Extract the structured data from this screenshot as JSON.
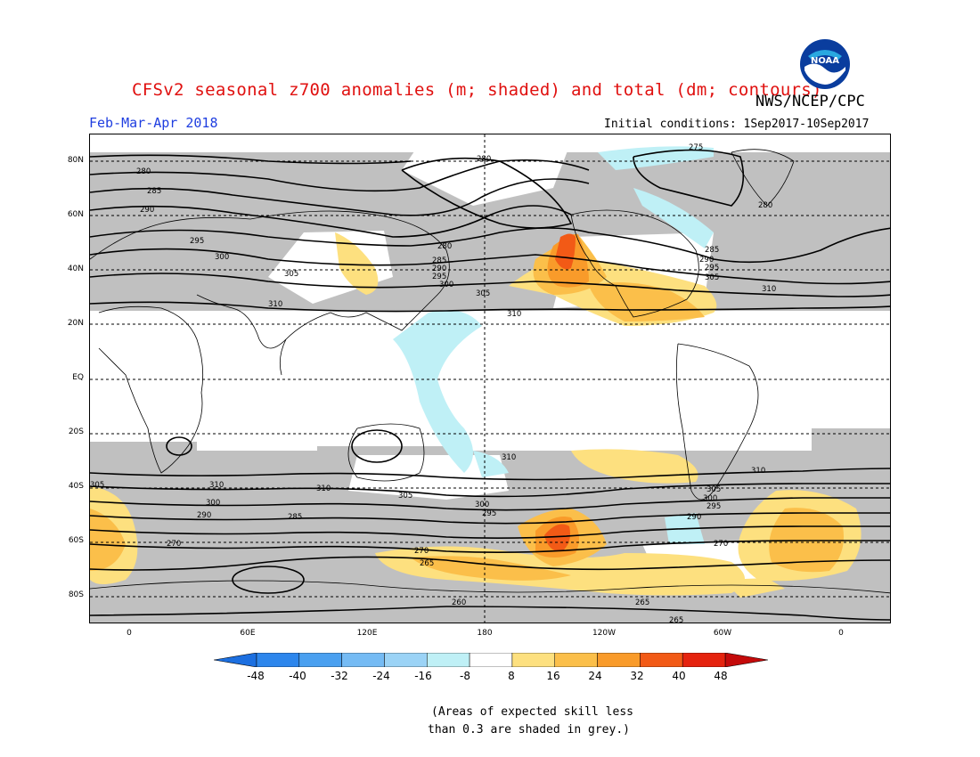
{
  "title": "CFSv2 seasonal z700 anomalies (m; shaded) and total (dm; contours)",
  "agency": "NWS/NCEP/CPC",
  "logo_text": "NOAA",
  "period": "Feb-Mar-Apr 2018",
  "initial_conditions": "Initial conditions: 1Sep2017-10Sep2017",
  "lat_labels": [
    "80N",
    "60N",
    "40N",
    "20N",
    "EQ",
    "20S",
    "40S",
    "60S",
    "80S"
  ],
  "lon_labels": [
    "0",
    "60E",
    "120E",
    "180",
    "120W",
    "60W",
    "0"
  ],
  "contour_labels": [
    "275",
    "280",
    "280",
    "280",
    "285",
    "285",
    "285",
    "290",
    "290",
    "290",
    "290",
    "295",
    "295",
    "295",
    "295",
    "300",
    "300",
    "300",
    "300",
    "305",
    "305",
    "305",
    "305",
    "305",
    "310",
    "310",
    "310",
    "310",
    "310",
    "310",
    "280",
    "285",
    "290",
    "295",
    "300",
    "305",
    "310",
    "270",
    "270",
    "270",
    "265",
    "265",
    "265",
    "260"
  ],
  "colorbar": {
    "ticks": [
      "-48",
      "-40",
      "-32",
      "-24",
      "-16",
      "-8",
      "8",
      "16",
      "24",
      "32",
      "40",
      "48"
    ],
    "colors": [
      "#1c6fe0",
      "#2d86ec",
      "#4aa0f0",
      "#75bbf4",
      "#9bd3f6",
      "#bff0f6",
      "#ffffff",
      "#fde07f",
      "#fbbf4a",
      "#f99b2a",
      "#f25a16",
      "#e5230e",
      "#c40a0a"
    ]
  },
  "note_line1": "(Areas of expected skill less",
  "note_line2": "than 0.3 are shaded in grey.)",
  "colors": {
    "skill_grey": "#c0c0c0",
    "title_red": "#e0100f",
    "period_blue": "#1f3ee0"
  }
}
